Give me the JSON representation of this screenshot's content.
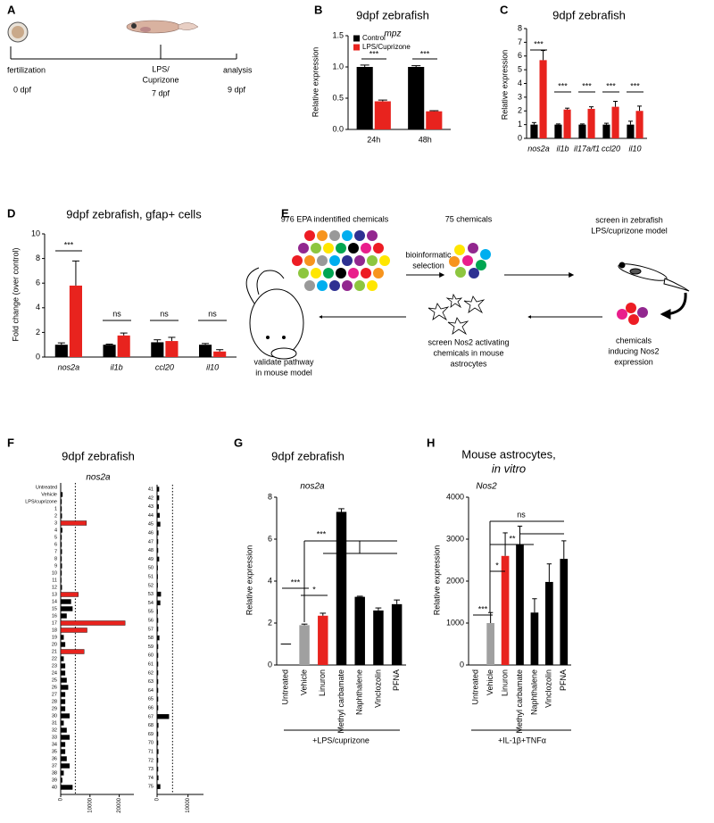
{
  "panel_labels": [
    "A",
    "B",
    "C",
    "D",
    "E",
    "F",
    "G",
    "H"
  ],
  "timeline": {
    "events": [
      {
        "lines": [
          "fertilization"
        ],
        "time": "0 dpf"
      },
      {
        "lines": [
          "LPS/",
          "Cuprizone"
        ],
        "time": "7 dpf"
      },
      {
        "lines": [
          "analysis"
        ],
        "time": "9 dpf"
      }
    ]
  },
  "workflow": {
    "steps": [
      {
        "lines": [
          "976 EPA indentified chemicals"
        ]
      },
      {
        "lines": [
          "75 chemicals"
        ]
      },
      {
        "lines": [
          "bioinformatic",
          "selection"
        ]
      },
      {
        "lines": [
          "screen in zebrafish",
          "LPS/cuprizone model"
        ]
      },
      {
        "lines": [
          "chemicals",
          "inducing Nos2",
          "expression"
        ]
      },
      {
        "lines": [
          "screen Nos2 activating",
          "chemicals in mouse",
          "astrocytes"
        ]
      },
      {
        "lines": [
          "validate pathway",
          "in mouse model"
        ]
      }
    ]
  },
  "chart_data": [
    {
      "type": "bar",
      "title": "9dpf zebrafish",
      "subtitle": "mpz",
      "y_label": "Relative expression",
      "categories": [
        "24h",
        "48h"
      ],
      "series": [
        {
          "name": "Control",
          "color": "#000000",
          "values": [
            1.0,
            1.0
          ],
          "errors": [
            0.03,
            0.02
          ]
        },
        {
          "name": "LPS/Cuprizone",
          "color": "#e8231e",
          "values": [
            0.45,
            0.29
          ],
          "errors": [
            0.02,
            0.01
          ]
        }
      ],
      "ylim": [
        0,
        1.5
      ],
      "yticks": [
        {
          "value": 0,
          "label": "0.0"
        },
        0.5,
        {
          "value": 1,
          "label": "1.0"
        },
        1.5
      ],
      "legend": "top-left",
      "annotations": [
        "***",
        "***"
      ]
    },
    {
      "type": "bar",
      "title": "9dpf zebrafish",
      "y_label": "Relative expression",
      "categories": [
        "nos2a",
        "il1b",
        "il17a/f1",
        "ccl20",
        "il10"
      ],
      "series": [
        {
          "color": "#000000",
          "values": [
            1.0,
            1.0,
            1.0,
            1.0,
            1.0
          ],
          "errors": [
            0.15,
            0.05,
            0.05,
            0.1,
            0.25
          ]
        },
        {
          "color": "#e8231e",
          "values": [
            5.7,
            2.1,
            2.15,
            2.3,
            2.0
          ],
          "errors": [
            0.7,
            0.1,
            0.15,
            0.4,
            0.35
          ]
        }
      ],
      "ylim": [
        0,
        8
      ],
      "yticks": [
        0,
        1,
        2,
        3,
        4,
        5,
        6,
        7,
        8
      ],
      "annotations": [
        "***",
        "***",
        "***",
        "***",
        "***"
      ]
    },
    {
      "type": "bar",
      "title": "9dpf zebrafish, gfap+ cells",
      "y_label": "Fold change (over control)",
      "categories": [
        "nos2a",
        "il1b",
        "ccl20",
        "il10"
      ],
      "series": [
        {
          "color": "#000000",
          "values": [
            1.0,
            1.0,
            1.2,
            1.0
          ],
          "errors": [
            0.15,
            0.05,
            0.2,
            0.1
          ]
        },
        {
          "color": "#e8231e",
          "values": [
            5.8,
            1.75,
            1.3,
            0.45
          ],
          "errors": [
            2.0,
            0.2,
            0.3,
            0.15
          ]
        }
      ],
      "ylim": [
        0,
        10
      ],
      "yticks": [
        0,
        2,
        4,
        6,
        8,
        10
      ],
      "annotations": [
        "***",
        "ns",
        "ns",
        "ns"
      ]
    },
    {
      "type": "hbar",
      "title": "9dpf zebrafish",
      "subtitle": "nos2a",
      "categories": [
        "Untreated",
        "Vehicle",
        "LPS/cuprizone",
        "1",
        "2",
        "3",
        "4",
        "5",
        "6",
        "7",
        "8",
        "9",
        "10",
        "11",
        "12",
        "13",
        "14",
        "15",
        "16",
        "17",
        "18",
        "19",
        "20",
        "21",
        "22",
        "23",
        "24",
        "25",
        "26",
        "27",
        "28",
        "29",
        "30",
        "31",
        "32",
        "33",
        "34",
        "35",
        "36",
        "37",
        "38",
        "39",
        "40"
      ],
      "values": [
        100,
        600,
        300,
        300,
        400,
        8800,
        500,
        300,
        300,
        400,
        300,
        400,
        300,
        200,
        400,
        6000,
        3500,
        4000,
        2000,
        22000,
        9000,
        1000,
        1500,
        8000,
        1000,
        1500,
        1500,
        2000,
        2500,
        1500,
        1500,
        1500,
        3000,
        1000,
        2000,
        3000,
        1500,
        1500,
        2000,
        3000,
        1000,
        500,
        4000
      ],
      "colors": [
        "#000000",
        "#000000",
        "#000000",
        "#000000",
        "#000000",
        "#e8231e",
        "#000000",
        "#000000",
        "#000000",
        "#000000",
        "#000000",
        "#000000",
        "#000000",
        "#000000",
        "#000000",
        "#e8231e",
        "#000000",
        "#000000",
        "#000000",
        "#e8231e",
        "#e8231e",
        "#000000",
        "#000000",
        "#e8231e",
        "#000000",
        "#000000",
        "#000000",
        "#000000",
        "#000000",
        "#000000",
        "#000000",
        "#000000",
        "#000000",
        "#000000",
        "#000000",
        "#000000",
        "#000000",
        "#000000",
        "#000000",
        "#000000",
        "#000000",
        "#000000",
        "#000000"
      ],
      "xlim": [
        0,
        25000
      ],
      "xticks": [
        0,
        10000,
        20000
      ],
      "reference_line": 5000
    },
    {
      "type": "hbar",
      "categories": [
        "41",
        "42",
        "43",
        "44",
        "45",
        "46",
        "47",
        "48",
        "49",
        "50",
        "51",
        "52",
        "53",
        "54",
        "55",
        "56",
        "57",
        "58",
        "59",
        "60",
        "61",
        "62",
        "63",
        "64",
        "65",
        "66",
        "67",
        "68",
        "69",
        "70",
        "71",
        "72",
        "73",
        "74",
        "75"
      ],
      "values": [
        600,
        600,
        500,
        800,
        1000,
        400,
        300,
        300,
        600,
        200,
        200,
        200,
        1200,
        1000,
        200,
        300,
        300,
        700,
        300,
        300,
        300,
        300,
        300,
        300,
        300,
        300,
        3800,
        400,
        300,
        300,
        400,
        300,
        300,
        400,
        1000
      ],
      "color": "#000000",
      "xlim": [
        0,
        15000
      ],
      "xticks": [
        0,
        10000
      ],
      "reference_line": 5000
    },
    {
      "type": "bar",
      "title": "9dpf zebrafish",
      "subtitle": "nos2a",
      "y_label": "Relative expression",
      "x_note": "+LPS/cuprizone",
      "categories": [
        "Untreated",
        "Vehicle",
        "Linuron",
        "Methyl carbamate",
        "Naphthalene",
        "Vinclozolin",
        "PFNA"
      ],
      "values": [
        1.0,
        1.9,
        2.35,
        7.3,
        3.25,
        2.6,
        2.9
      ],
      "errors": [
        0,
        0.05,
        0.12,
        0.15,
        0.03,
        0.12,
        0.2
      ],
      "colors": [
        "none",
        "#a0a0a0",
        "#e8231e",
        "#000000",
        "#000000",
        "#000000",
        "#000000"
      ],
      "ylim": [
        0,
        8
      ],
      "yticks": [
        0,
        2,
        4,
        6,
        8
      ],
      "annotations": [
        "***",
        "*",
        "***"
      ]
    },
    {
      "type": "bar",
      "title": [
        "Mouse astrocytes,",
        "in vitro"
      ],
      "subtitle": "Nos2",
      "y_label": "Relative expression",
      "x_note": "+IL-1β+TNFα",
      "categories": [
        "Untreated",
        "Vehicle",
        "Linuron",
        "Methyl carbamate",
        "Naphthalene",
        "Vinclozolin",
        "PFNA"
      ],
      "values": [
        0,
        1000,
        2600,
        2880,
        1250,
        1980,
        2530
      ],
      "errors": [
        0,
        250,
        550,
        430,
        330,
        430,
        430
      ],
      "colors": [
        "#ffffff",
        "#a0a0a0",
        "#e8231e",
        "#000000",
        "#000000",
        "#000000",
        "#000000"
      ],
      "ylim": [
        0,
        4000
      ],
      "yticks": [
        0,
        1000,
        2000,
        3000,
        4000
      ],
      "annotations": [
        "***",
        "*",
        "**",
        "ns"
      ]
    }
  ]
}
